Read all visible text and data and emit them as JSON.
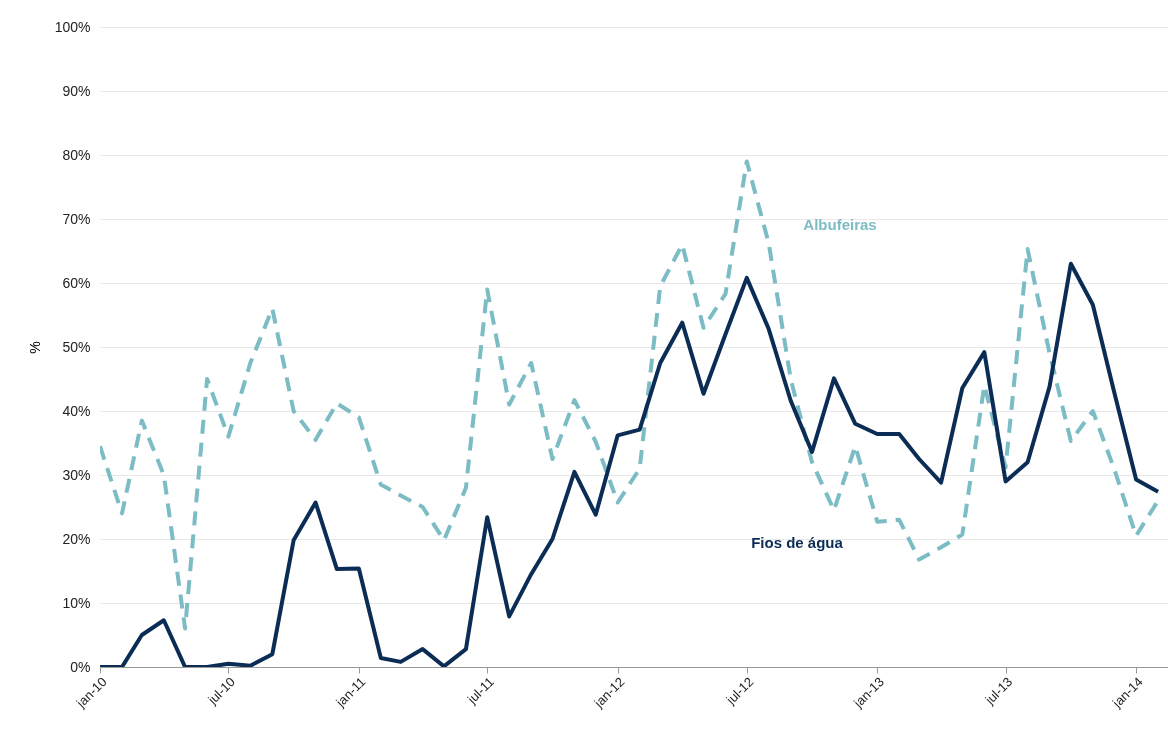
{
  "chart_data": {
    "type": "line",
    "ylabel": "%",
    "x": [
      "2010-01",
      "2010-02",
      "2010-03",
      "2010-04",
      "2010-05",
      "2010-06",
      "2010-07",
      "2010-08",
      "2010-09",
      "2010-10",
      "2010-11",
      "2010-12",
      "2011-01",
      "2011-02",
      "2011-03",
      "2011-04",
      "2011-05",
      "2011-06",
      "2011-07",
      "2011-08",
      "2011-09",
      "2011-10",
      "2011-11",
      "2011-12",
      "2012-01",
      "2012-02",
      "2012-03",
      "2012-04",
      "2012-05",
      "2012-06",
      "2012-07",
      "2012-08",
      "2012-09",
      "2012-10",
      "2012-11",
      "2012-12",
      "2013-01",
      "2013-02",
      "2013-03",
      "2013-04",
      "2013-05",
      "2013-06",
      "2013-07",
      "2013-08",
      "2013-09",
      "2013-10",
      "2013-11",
      "2013-12",
      "2014-01",
      "2014-02"
    ],
    "series": [
      {
        "name": "Albufeiras",
        "color": "#7bbcc5",
        "line_style": "dashed",
        "values": [
          34.5,
          24,
          38.5,
          30,
          6,
          45,
          36,
          47.5,
          56,
          40,
          35.5,
          41.2,
          39,
          28.5,
          26.8,
          25,
          19.8,
          28,
          59,
          41,
          47.5,
          32.5,
          41.7,
          35.2,
          25.7,
          31,
          59.5,
          66,
          53,
          58.3,
          79,
          66.2,
          45,
          32,
          24.5,
          34.5,
          22.7,
          23,
          16.8,
          18.7,
          20.7,
          44,
          31.2,
          65.3,
          49,
          35.3,
          40,
          31,
          20.5,
          26
        ]
      },
      {
        "name": "Fios de água",
        "color": "#0b2d55",
        "line_style": "solid",
        "values": [
          0,
          0,
          5,
          7.3,
          0,
          0,
          0.5,
          0.2,
          2,
          19.8,
          25.7,
          15.3,
          15.4,
          1.4,
          0.8,
          2.8,
          0.1,
          2.8,
          23.4,
          7.9,
          14.5,
          20,
          30.5,
          23.8,
          36.2,
          37.1,
          47.5,
          53.8,
          42.7,
          52,
          60.8,
          52.8,
          41.6,
          33.6,
          45.1,
          38,
          36.4,
          36.4,
          32.5,
          28.8,
          43.6,
          49.2,
          29,
          32,
          43.8,
          63,
          56.6,
          43,
          29.3,
          27.4
        ]
      }
    ],
    "xlim": [
      "2010-01",
      "2014-02-15"
    ],
    "xticks": [
      {
        "value": "2010-01",
        "label": "jan-10"
      },
      {
        "value": "2010-07",
        "label": "jul-10"
      },
      {
        "value": "2011-01",
        "label": "jan-11"
      },
      {
        "value": "2011-07",
        "label": "jul-11"
      },
      {
        "value": "2012-01",
        "label": "jan-12"
      },
      {
        "value": "2012-07",
        "label": "jul-12"
      },
      {
        "value": "2013-01",
        "label": "jan-13"
      },
      {
        "value": "2013-07",
        "label": "jul-13"
      },
      {
        "value": "2014-01",
        "label": "jan-14"
      }
    ],
    "ylim": [
      0,
      100
    ],
    "yticks": [
      {
        "value": 0,
        "label": "0%"
      },
      {
        "value": 10,
        "label": "10%"
      },
      {
        "value": 20,
        "label": "20%"
      },
      {
        "value": 30,
        "label": "30%"
      },
      {
        "value": 40,
        "label": "40%"
      },
      {
        "value": 50,
        "label": "50%"
      },
      {
        "value": 60,
        "label": "60%"
      },
      {
        "value": 70,
        "label": "70%"
      },
      {
        "value": 80,
        "label": "80%"
      },
      {
        "value": 90,
        "label": "90%"
      },
      {
        "value": 100,
        "label": "100%"
      }
    ],
    "grid": "y",
    "legend": false,
    "marker": "none"
  }
}
